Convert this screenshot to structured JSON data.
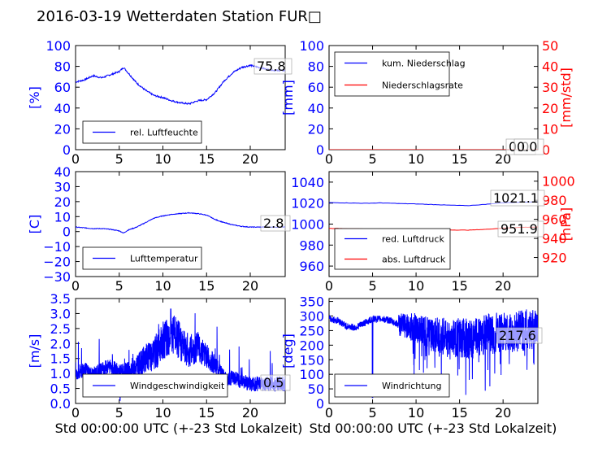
{
  "title": "2016-03-19 Wetterdaten Station FUR□",
  "xlabel": "Std 00:00:00 UTC (+-23 Std Lokalzeit)",
  "colors": {
    "primary": "#0000ff",
    "secondary": "#ff0000",
    "axis": "#000000"
  },
  "chart_data": [
    {
      "type": "line",
      "panel": "humidity",
      "ylabel": "[%]",
      "ylim": [
        0,
        100
      ],
      "yticks": [
        "0",
        "20",
        "40",
        "60",
        "80",
        "100"
      ],
      "xlim": [
        0,
        24
      ],
      "xticks": [
        "0",
        "5",
        "10",
        "15",
        "20"
      ],
      "grid": false,
      "legend_position": "lower-left",
      "value_label": "75.8",
      "series": [
        {
          "name": "rel. Luftfeuchte",
          "color": "#0000ff",
          "x": [
            0,
            1,
            2,
            3,
            4,
            5,
            5.5,
            6,
            7,
            8,
            9,
            10,
            11,
            12,
            13,
            14,
            15,
            16,
            17,
            18,
            19,
            20,
            21,
            22,
            23,
            24
          ],
          "y": [
            65,
            67,
            71,
            69,
            72,
            75,
            79,
            74,
            64,
            57,
            52,
            50,
            47,
            45,
            44,
            47,
            48,
            55,
            66,
            74,
            79,
            81,
            79,
            77,
            76,
            76
          ]
        }
      ]
    },
    {
      "type": "line",
      "panel": "precipitation",
      "ylabel": "[mm]",
      "ylim": [
        0,
        100
      ],
      "yticks": [
        "0",
        "20",
        "40",
        "60",
        "80",
        "100"
      ],
      "ylabel_right": "[mm/std]",
      "ylim_right": [
        0,
        50
      ],
      "yticks_right": [
        "0",
        "10",
        "20",
        "30",
        "40",
        "50"
      ],
      "xlim": [
        0,
        24
      ],
      "xticks": [
        "0",
        "5",
        "10",
        "15",
        "20"
      ],
      "grid": false,
      "legend_position": "top-left",
      "value_label_1": "0.0",
      "value_label_2": "0.0",
      "series": [
        {
          "name": "kum. Niederschlag",
          "color": "#0000ff",
          "x": [
            0,
            24
          ],
          "y": [
            0,
            0
          ]
        },
        {
          "name": "Niederschlagsrate",
          "color": "#ff0000",
          "x": [
            0,
            24
          ],
          "y": [
            0,
            0
          ]
        }
      ]
    },
    {
      "type": "line",
      "panel": "temperature",
      "ylabel": "[C]",
      "ylim": [
        -30,
        40
      ],
      "yticks": [
        "−30",
        "−20",
        "−10",
        "0",
        "10",
        "20",
        "30",
        "40"
      ],
      "xlim": [
        0,
        24
      ],
      "xticks": [
        "0",
        "5",
        "10",
        "15",
        "20"
      ],
      "grid": false,
      "legend_position": "lower-left",
      "value_label": "2.8",
      "series": [
        {
          "name": "Lufttemperatur",
          "color": "#0000ff",
          "x": [
            0,
            1,
            2,
            3,
            4,
            5,
            5.5,
            6,
            7,
            8,
            9,
            10,
            11,
            12,
            13,
            14,
            15,
            16,
            17,
            18,
            19,
            20,
            21,
            22,
            23,
            24
          ],
          "y": [
            3,
            2.5,
            2,
            2,
            1.5,
            0.5,
            -1,
            1,
            3,
            6,
            9,
            10.5,
            11.5,
            12,
            12.5,
            12,
            11,
            8,
            6,
            4.5,
            3.5,
            3,
            3,
            3,
            3,
            3
          ]
        }
      ]
    },
    {
      "type": "line",
      "panel": "pressure",
      "ylim": [
        950,
        1050
      ],
      "yticks": [
        "960",
        "980",
        "1000",
        "1020",
        "1040"
      ],
      "ylabel_right": "[hPa]",
      "ylim_right": [
        900,
        1010
      ],
      "yticks_right": [
        "920",
        "940",
        "960",
        "980",
        "1000"
      ],
      "xlim": [
        0,
        24
      ],
      "xticks": [
        "0",
        "5",
        "10",
        "15",
        "20"
      ],
      "grid": false,
      "legend_position": "lower-left",
      "value_label_1": "1021.1",
      "value_label_2": "951.9",
      "series": [
        {
          "name": "red. Luftdruck",
          "color": "#0000ff",
          "x": [
            0,
            2,
            4,
            6,
            8,
            10,
            12,
            14,
            16,
            18,
            20,
            22,
            24
          ],
          "y": [
            1020.5,
            1020.2,
            1019.8,
            1020.2,
            1019.6,
            1019.2,
            1018.6,
            1018.0,
            1017.6,
            1018.8,
            1020.3,
            1021.0,
            1021.1
          ]
        },
        {
          "name": "abs. Luftdruck",
          "color": "#ff0000",
          "x": [
            0,
            2,
            4,
            6,
            8,
            10,
            12,
            14,
            16,
            18,
            20,
            22,
            24
          ],
          "y": [
            950.5,
            950.3,
            949.8,
            949.8,
            949.6,
            949.3,
            949.0,
            948.8,
            948.7,
            949.5,
            950.8,
            951.6,
            951.9
          ]
        }
      ]
    },
    {
      "type": "line",
      "panel": "windspeed",
      "ylabel": "[m/s]",
      "ylim": [
        0,
        3.5
      ],
      "yticks": [
        "0.0",
        "0.5",
        "1.0",
        "1.5",
        "2.0",
        "2.5",
        "3.0",
        "3.5"
      ],
      "xlim": [
        0,
        24
      ],
      "xticks": [
        "0",
        "5",
        "10",
        "15",
        "20"
      ],
      "grid": false,
      "legend_position": "lower-left",
      "value_label": "0.5",
      "series": [
        {
          "name": "Windgeschwindigkeit",
          "color": "#0000ff",
          "x": [
            0,
            1,
            2,
            3,
            4,
            5,
            6,
            7,
            8,
            9,
            10,
            11,
            12,
            13,
            14,
            15,
            16,
            17,
            18,
            19,
            20,
            21,
            22,
            23,
            24
          ],
          "y": [
            0.9,
            1.1,
            0.9,
            1.1,
            1.2,
            1.0,
            1.0,
            1.1,
            1.4,
            1.5,
            2.0,
            2.2,
            1.9,
            1.6,
            1.8,
            1.5,
            1.2,
            0.8,
            0.8,
            0.7,
            0.6,
            0.6,
            0.6,
            0.6,
            0.6
          ]
        }
      ]
    },
    {
      "type": "line",
      "panel": "winddirection",
      "ylabel": "[deg]",
      "ylim": [
        0,
        360
      ],
      "yticks": [
        "0",
        "50",
        "100",
        "150",
        "200",
        "250",
        "300",
        "350"
      ],
      "xlim": [
        0,
        24
      ],
      "xticks": [
        "0",
        "5",
        "10",
        "15",
        "20"
      ],
      "grid": false,
      "legend_position": "lower-left",
      "value_label": "217.6",
      "series": [
        {
          "name": "Windrichtung",
          "color": "#0000ff",
          "x": [
            0,
            1,
            2,
            3,
            4,
            5,
            6,
            7,
            8,
            9,
            10,
            11,
            12,
            13,
            14,
            15,
            16,
            17,
            18,
            19,
            20,
            21,
            22,
            23,
            24
          ],
          "y": [
            290,
            285,
            265,
            260,
            275,
            290,
            290,
            285,
            270,
            265,
            260,
            250,
            235,
            230,
            220,
            225,
            220,
            225,
            240,
            240,
            250,
            245,
            250,
            255,
            260
          ]
        }
      ]
    }
  ]
}
